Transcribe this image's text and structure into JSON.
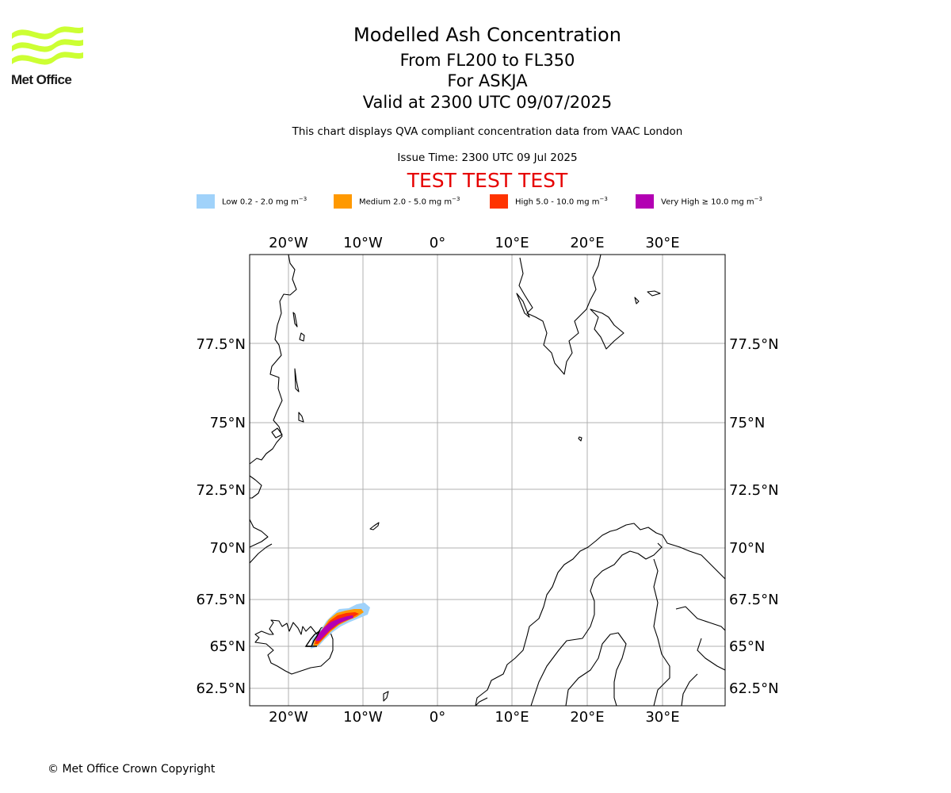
{
  "logo": {
    "text": "Met Office",
    "brand_color": "#ccff33"
  },
  "title": "Modelled Ash Concentration",
  "subtitle_levels": "From FL200 to FL350",
  "subtitle_volcano": "For ASKJA",
  "subtitle_valid": "Valid at 2300 UTC 09/07/2025",
  "description": "This chart displays QVA compliant concentration data from VAAC London",
  "issue_time": "Issue Time: 2300 UTC 09 Jul 2025",
  "test_banner": "TEST TEST TEST",
  "test_color": "#e60000",
  "legend": [
    {
      "label": "Low 0.2 - 2.0 mg m",
      "unit_exp": "−3",
      "color": "#a0d2fa"
    },
    {
      "label": "Medium 2.0 - 5.0 mg m",
      "unit_exp": "−3",
      "color": "#ff9900"
    },
    {
      "label": "High 5.0 - 10.0 mg m",
      "unit_exp": "−3",
      "color": "#ff3300"
    },
    {
      "label": "Very High ≥ 10.0 mg m",
      "unit_exp": "−3",
      "color": "#b300b3"
    }
  ],
  "map": {
    "lon_labels": [
      "20°W",
      "10°W",
      "0°",
      "10°E",
      "20°E",
      "30°E"
    ],
    "lat_labels": [
      "77.5°N",
      "75°N",
      "72.5°N",
      "70°N",
      "67.5°N",
      "65°N",
      "62.5°N"
    ],
    "grid_color": "#b0b0b0",
    "coast_color": "#000000"
  },
  "copyright": "© Met Office Crown Copyright"
}
